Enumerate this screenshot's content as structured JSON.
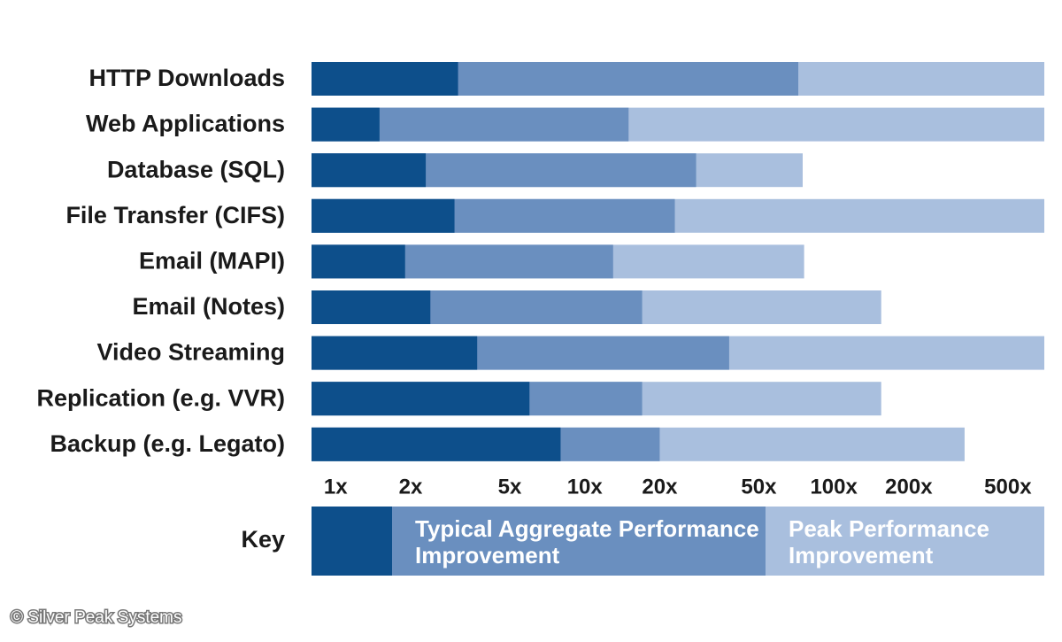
{
  "chart_data": {
    "type": "bar",
    "orientation": "horizontal",
    "log_scale": true,
    "categories": [
      "HTTP Downloads",
      "Web Applications",
      "Database (SQL)",
      "File Transfer (CIFS)",
      "Email (MAPI)",
      "Email (Notes)",
      "Video Streaming",
      "Replication (e.g. VVR)",
      "Backup (e.g. Legato)"
    ],
    "series": [
      {
        "name": null,
        "color": "#0d4f8b",
        "values": [
          3.1,
          1.5,
          2.3,
          3,
          1.9,
          2.4,
          3.7,
          6,
          8
        ]
      },
      {
        "name": "Typical Aggregate Performance Improvement",
        "color": "#6a8fbf",
        "values": [
          72,
          15,
          28,
          23,
          13,
          17,
          38,
          17,
          20
        ]
      },
      {
        "name": "Peak Performance Improvement",
        "color": "#a9bfde",
        "values": [
          700,
          700,
          75,
          700,
          76,
          155,
          700,
          155,
          335
        ]
      }
    ],
    "xlim": [
      0.8,
      700
    ],
    "xticks": [
      {
        "value": 1,
        "label": "1x"
      },
      {
        "value": 2,
        "label": "2x"
      },
      {
        "value": 5,
        "label": "5x"
      },
      {
        "value": 10,
        "label": "10x"
      },
      {
        "value": 20,
        "label": "20x"
      },
      {
        "value": 50,
        "label": "50x"
      },
      {
        "value": 100,
        "label": "100x"
      },
      {
        "value": 200,
        "label": "200x"
      },
      {
        "value": 500,
        "label": "500x"
      }
    ],
    "legend_title": "Key",
    "credit": "© Silver Peak Systems"
  }
}
